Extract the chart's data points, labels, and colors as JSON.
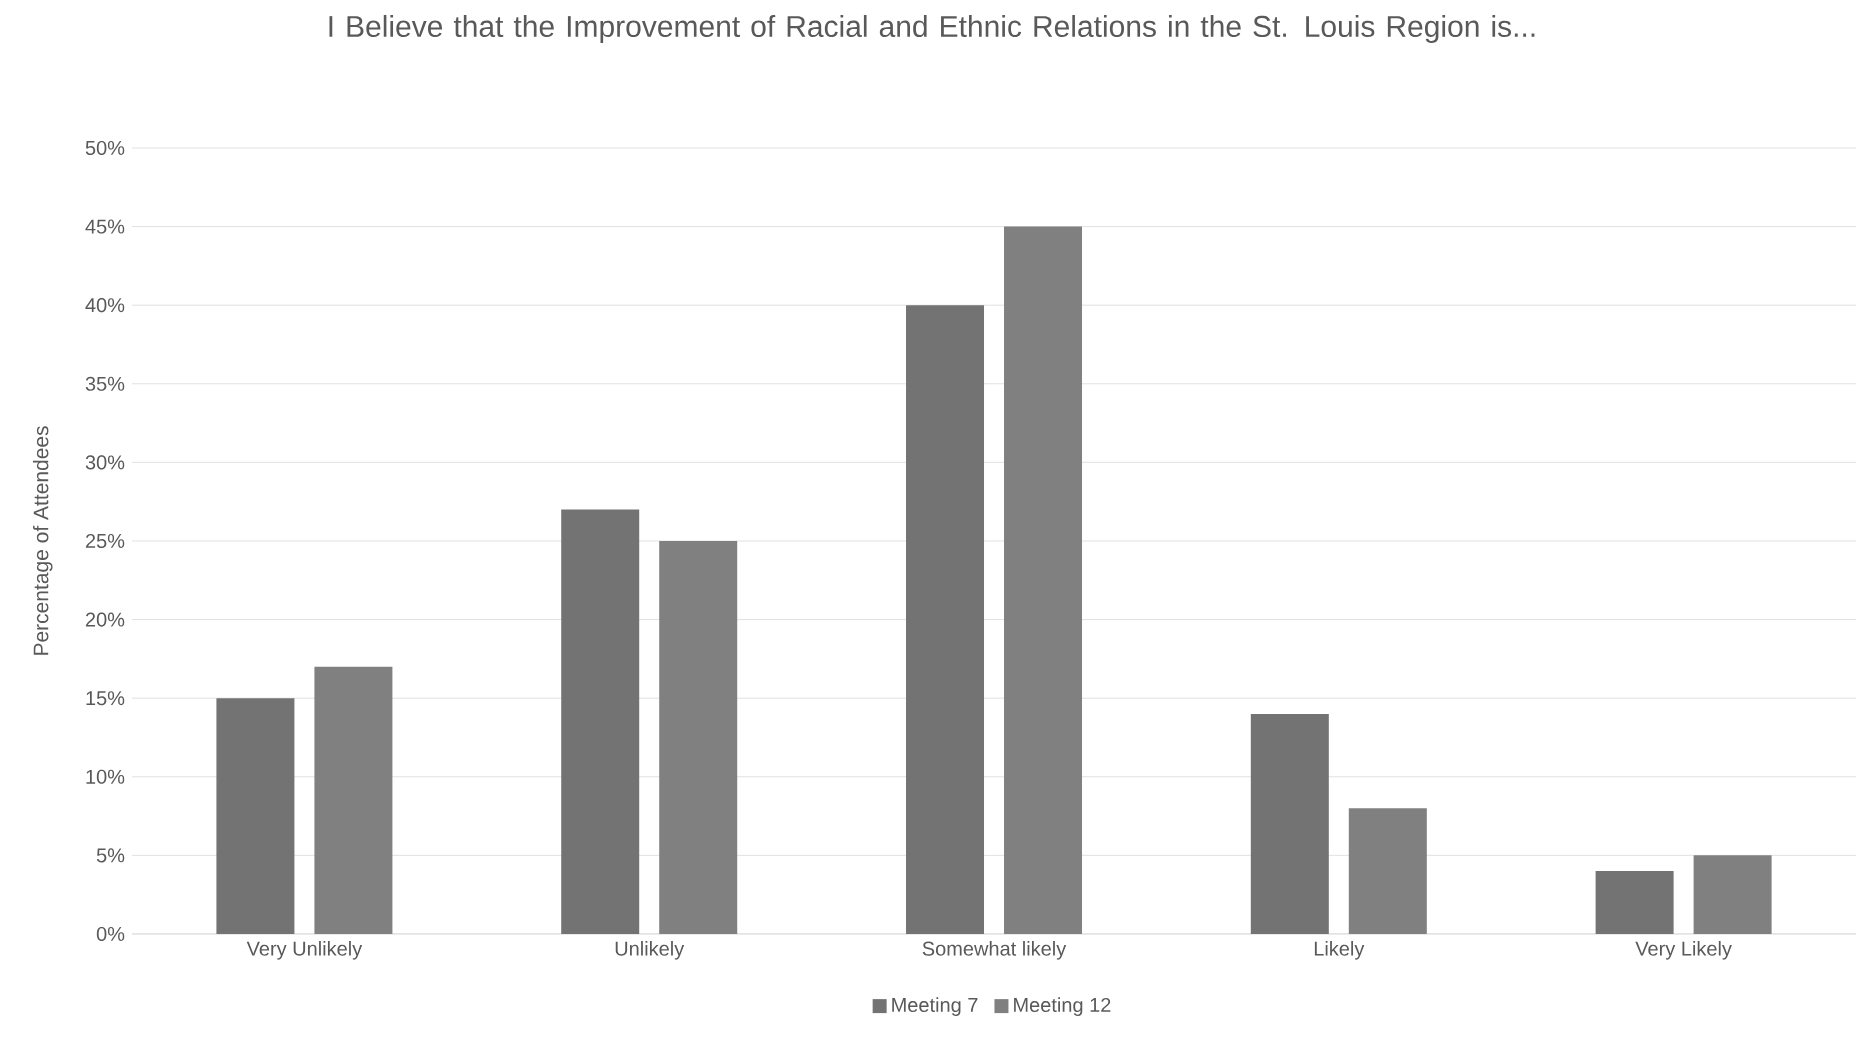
{
  "chart_data": {
    "type": "bar",
    "title": "I Believe that the Improvement of Racial and Ethnic Relations in the St. Louis Region is...",
    "ylabel": "Percentage of Attendees",
    "categories": [
      "Very Unlikely",
      "Unlikely",
      "Somewhat likely",
      "Likely",
      "Very Likely"
    ],
    "series": [
      {
        "name": "Meeting 7",
        "color": "#737373",
        "values": [
          15,
          27,
          40,
          14,
          4
        ]
      },
      {
        "name": "Meeting 12",
        "color": "#808080",
        "values": [
          17,
          25,
          45,
          8,
          5
        ]
      }
    ],
    "ylim": [
      0,
      50
    ],
    "yticks": [
      {
        "value": 0,
        "label": "0%"
      },
      {
        "value": 5,
        "label": "5%"
      },
      {
        "value": 10,
        "label": "10%"
      },
      {
        "value": 15,
        "label": "15%"
      },
      {
        "value": 20,
        "label": "20%"
      },
      {
        "value": 25,
        "label": "25%"
      },
      {
        "value": 30,
        "label": "30%"
      },
      {
        "value": 35,
        "label": "35%"
      },
      {
        "value": 40,
        "label": "40%"
      },
      {
        "value": 45,
        "label": "45%"
      },
      {
        "value": 50,
        "label": "50%"
      }
    ],
    "grid": "y",
    "legend": "bottom"
  }
}
